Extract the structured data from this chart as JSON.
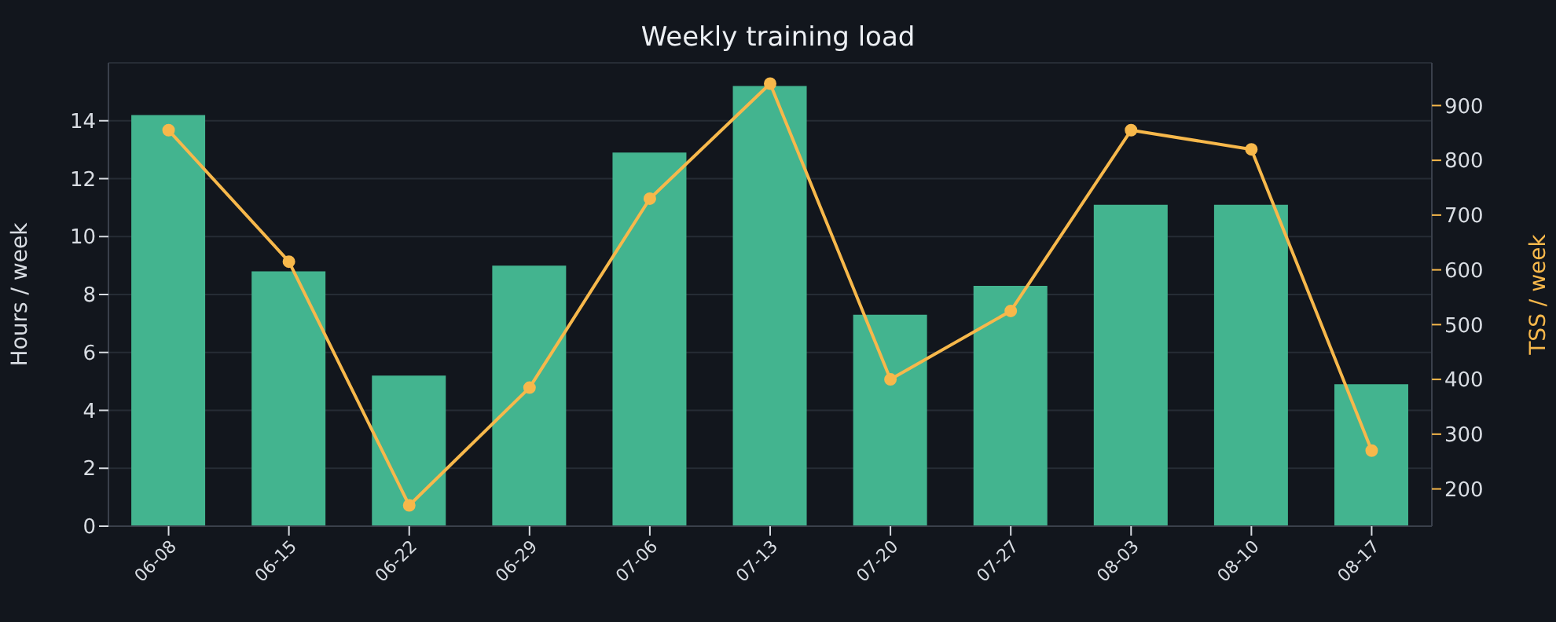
{
  "chart_data": {
    "type": "bar",
    "title": "Weekly training load",
    "ylabel": "Hours / week",
    "y2label": "TSS / week",
    "categories": [
      "06-08",
      "06-15",
      "06-22",
      "06-29",
      "07-06",
      "07-13",
      "07-20",
      "07-27",
      "08-03",
      "08-10",
      "08-17"
    ],
    "series": [
      {
        "color": "#43b48f",
        "values": [
          14.2,
          8.8,
          5.2,
          9.0,
          12.9,
          15.2,
          7.3,
          8.3,
          11.1,
          11.1,
          4.9
        ]
      },
      {
        "type": "line",
        "axis": "y2",
        "color": "#f7b84b",
        "marker": "circle",
        "values": [
          855,
          615,
          170,
          385,
          730,
          940,
          400,
          525,
          855,
          820,
          270
        ]
      }
    ],
    "ylim": [
      0,
      16
    ],
    "yticks": [
      0,
      2,
      4,
      6,
      8,
      10,
      12,
      14
    ],
    "y2lim": [
      132,
      978
    ],
    "y2ticks": [
      200,
      300,
      400,
      500,
      600,
      700,
      800,
      900
    ],
    "grid": "y",
    "legend": false
  }
}
